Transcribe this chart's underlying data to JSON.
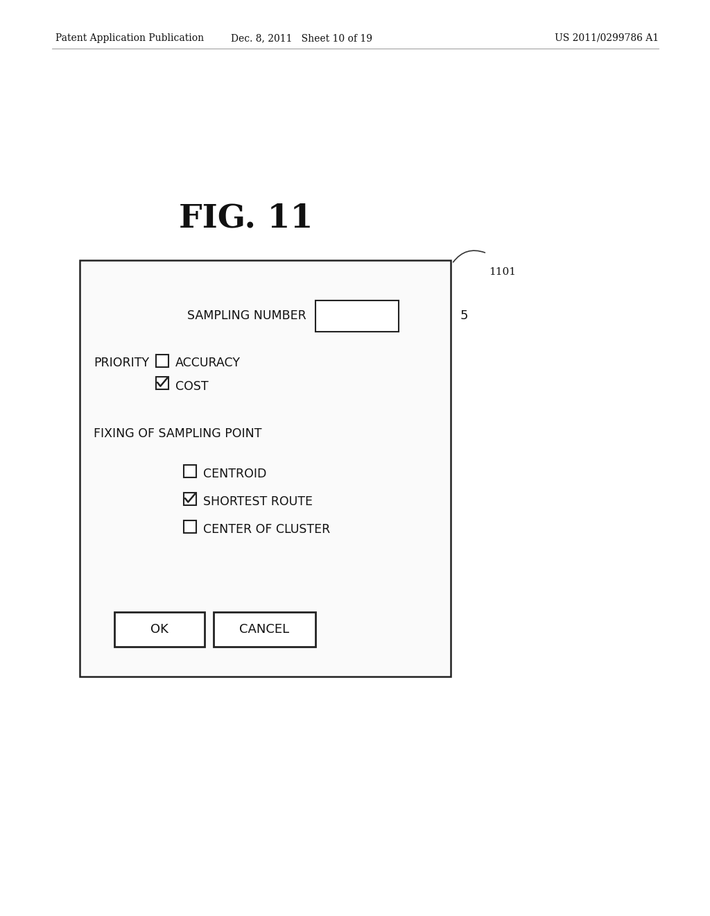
{
  "bg_color": "#ffffff",
  "header_left": "Patent Application Publication",
  "header_mid": "Dec. 8, 2011   Sheet 10 of 19",
  "header_right": "US 2011/0299786 A1",
  "fig_label": "FIG. 11",
  "label_ref": "1101",
  "dialog": {
    "sampling_number_label": "SAMPLING NUMBER",
    "sampling_number_value": "5",
    "priority_label": "PRIORITY",
    "accuracy_label": "ACCURACY",
    "cost_label": "COST",
    "fixing_label": "FIXING OF SAMPLING POINT",
    "centroid_label": "CENTROID",
    "shortest_label": "SHORTEST ROUTE",
    "cluster_label": "CENTER OF CLUSTER",
    "ok_label": "OK",
    "cancel_label": "CANCEL"
  }
}
